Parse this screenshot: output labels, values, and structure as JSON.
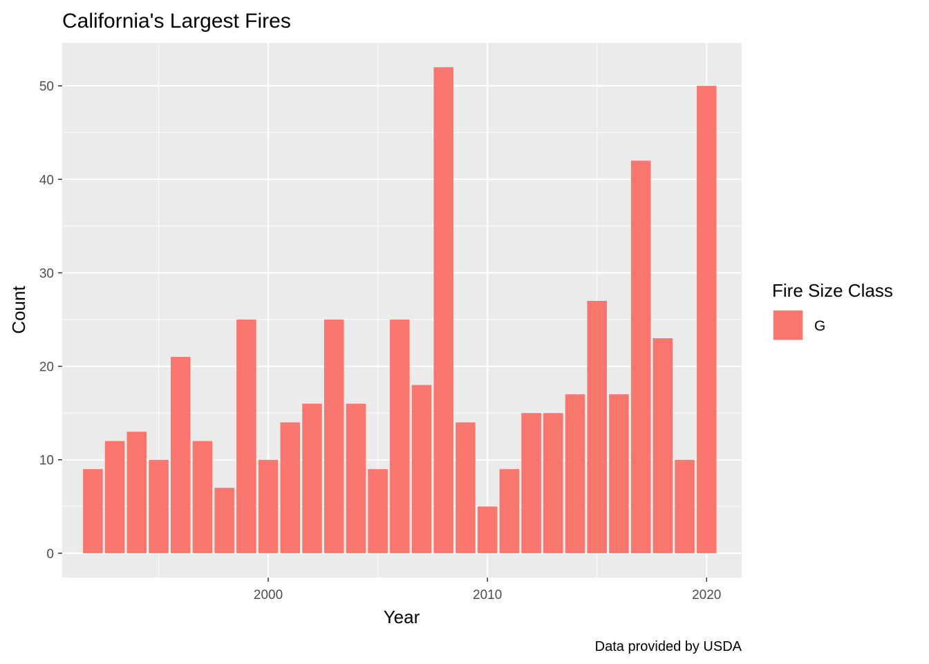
{
  "chart_data": {
    "type": "bar",
    "title": "California's Largest Fires",
    "xlabel": "Year",
    "ylabel": "Count",
    "caption": "Data provided by USDA",
    "legend": {
      "title": "Fire Size Class",
      "position": "right",
      "entries": [
        {
          "label": "G",
          "color": "#F8766D"
        }
      ]
    },
    "grid": true,
    "xlim": [
      1990.6,
      2021.6
    ],
    "ylim": [
      -2.6,
      54.6
    ],
    "x_ticks": [
      2000,
      2010,
      2020
    ],
    "y_ticks": [
      0,
      10,
      20,
      30,
      40,
      50
    ],
    "bar_color": "#F8766D",
    "panel_background": "#EBEBEB",
    "x": [
      1992,
      1993,
      1994,
      1995,
      1996,
      1997,
      1998,
      1999,
      2000,
      2001,
      2002,
      2003,
      2004,
      2005,
      2006,
      2007,
      2008,
      2009,
      2010,
      2011,
      2012,
      2013,
      2014,
      2015,
      2016,
      2017,
      2018,
      2019,
      2020
    ],
    "series": [
      {
        "name": "G",
        "values": [
          9,
          12,
          13,
          10,
          21,
          12,
          7,
          25,
          10,
          14,
          16,
          25,
          16,
          9,
          25,
          18,
          52,
          14,
          5,
          9,
          15,
          15,
          17,
          27,
          17,
          42,
          23,
          10,
          50
        ]
      }
    ]
  }
}
